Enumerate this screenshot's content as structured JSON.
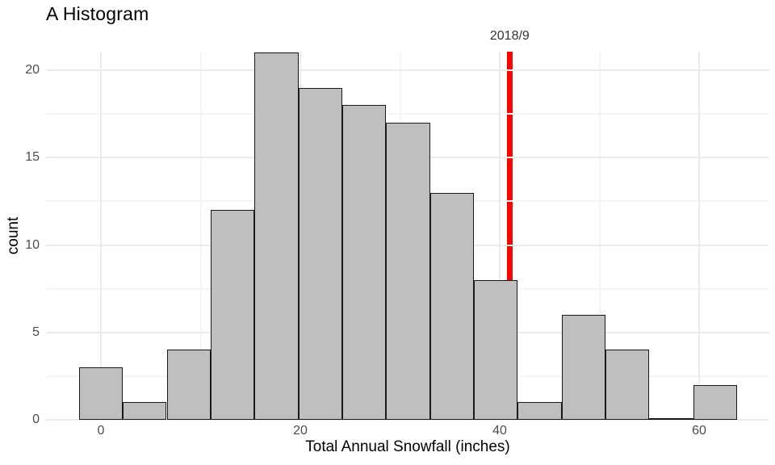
{
  "title": "A Histogram",
  "colors": {
    "background": "#FFFFFF",
    "bar_fill": "#BFBFBF",
    "bar_border": "#1A1A1A",
    "grid_major": "#EBEBEB",
    "grid_minor": "#F5F5F5",
    "tick_label": "#4D4D4D",
    "axis_title": "#000000",
    "title_text": "#000000",
    "vline": "#FF0000",
    "annotation_text": "#333333"
  },
  "chart_data": {
    "type": "bar",
    "subtype": "histogram",
    "title": "A Histogram",
    "xlabel": "Total Annual Snowfall (inches)",
    "ylabel": "count",
    "bin_start": -2.2,
    "bin_width": 4.4,
    "bin_edges": [
      -2.2,
      2.2,
      6.6,
      11.0,
      15.4,
      19.8,
      24.2,
      28.6,
      33.0,
      37.4,
      41.8,
      46.2,
      50.6,
      55.0,
      59.4,
      63.8
    ],
    "counts": [
      3,
      1,
      4,
      12,
      21,
      19,
      18,
      17,
      13,
      8,
      1,
      6,
      4,
      0,
      2
    ],
    "x_ticks": [
      0,
      20,
      40,
      60
    ],
    "x_minor_ticks": [
      10,
      30,
      50
    ],
    "y_ticks": [
      0,
      5,
      10,
      15,
      20
    ],
    "y_minor_ticks": [
      2.5,
      7.5,
      12.5,
      17.5
    ],
    "xlim": [
      -5.5,
      67
    ],
    "ylim": [
      0,
      21.1
    ],
    "grid": "on",
    "legend": "none",
    "vline": {
      "x": 41,
      "label": "2018/9"
    }
  }
}
